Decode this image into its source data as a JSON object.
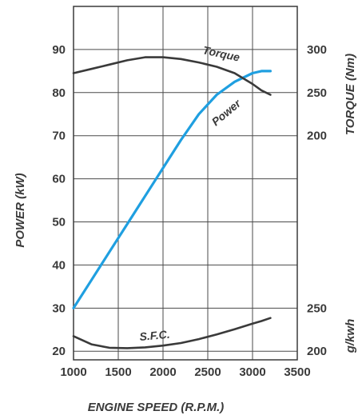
{
  "chart_data": {
    "type": "line",
    "x": [
      1000,
      1200,
      1400,
      1600,
      1800,
      2000,
      2200,
      2400,
      2600,
      2800,
      3000,
      3100,
      3200
    ],
    "xlabel": "ENGINE SPEED (R.P.M.)",
    "xticks": [
      "1000",
      "1500",
      "2000",
      "2500",
      "3000",
      "3500"
    ],
    "xlim": [
      1000,
      3500
    ],
    "ylabel_left": "POWER (kW)",
    "yticks_left": [
      "20",
      "30",
      "40",
      "50",
      "60",
      "70",
      "80",
      "90"
    ],
    "ylim_left": [
      18,
      100
    ],
    "ylabel_right_top": "TORQUE (Nm)",
    "yticks_right_top": [
      "200",
      "250",
      "300"
    ],
    "ylabel_right_bottom": "g/kwh",
    "yticks_right_bottom": [
      "200",
      "250"
    ],
    "grid": true,
    "series": [
      {
        "name": "Power",
        "color": "#1f9fe0",
        "values": [
          30,
          36.5,
          43,
          49.5,
          56,
          62.5,
          69,
          75,
          79.5,
          82.5,
          84.5,
          85,
          85
        ]
      },
      {
        "name": "Torque",
        "color": "#3a3a3a",
        "values": [
          84.5,
          85.5,
          86.5,
          87.5,
          88.2,
          88.2,
          87.8,
          87,
          86,
          84.5,
          82,
          80.5,
          79.5
        ]
      },
      {
        "name": "S.F.C.",
        "color": "#3a3a3a",
        "values": [
          23.5,
          21.6,
          20.8,
          20.7,
          20.9,
          21.3,
          21.9,
          22.8,
          23.9,
          25.1,
          26.4,
          27,
          27.7
        ]
      }
    ]
  }
}
